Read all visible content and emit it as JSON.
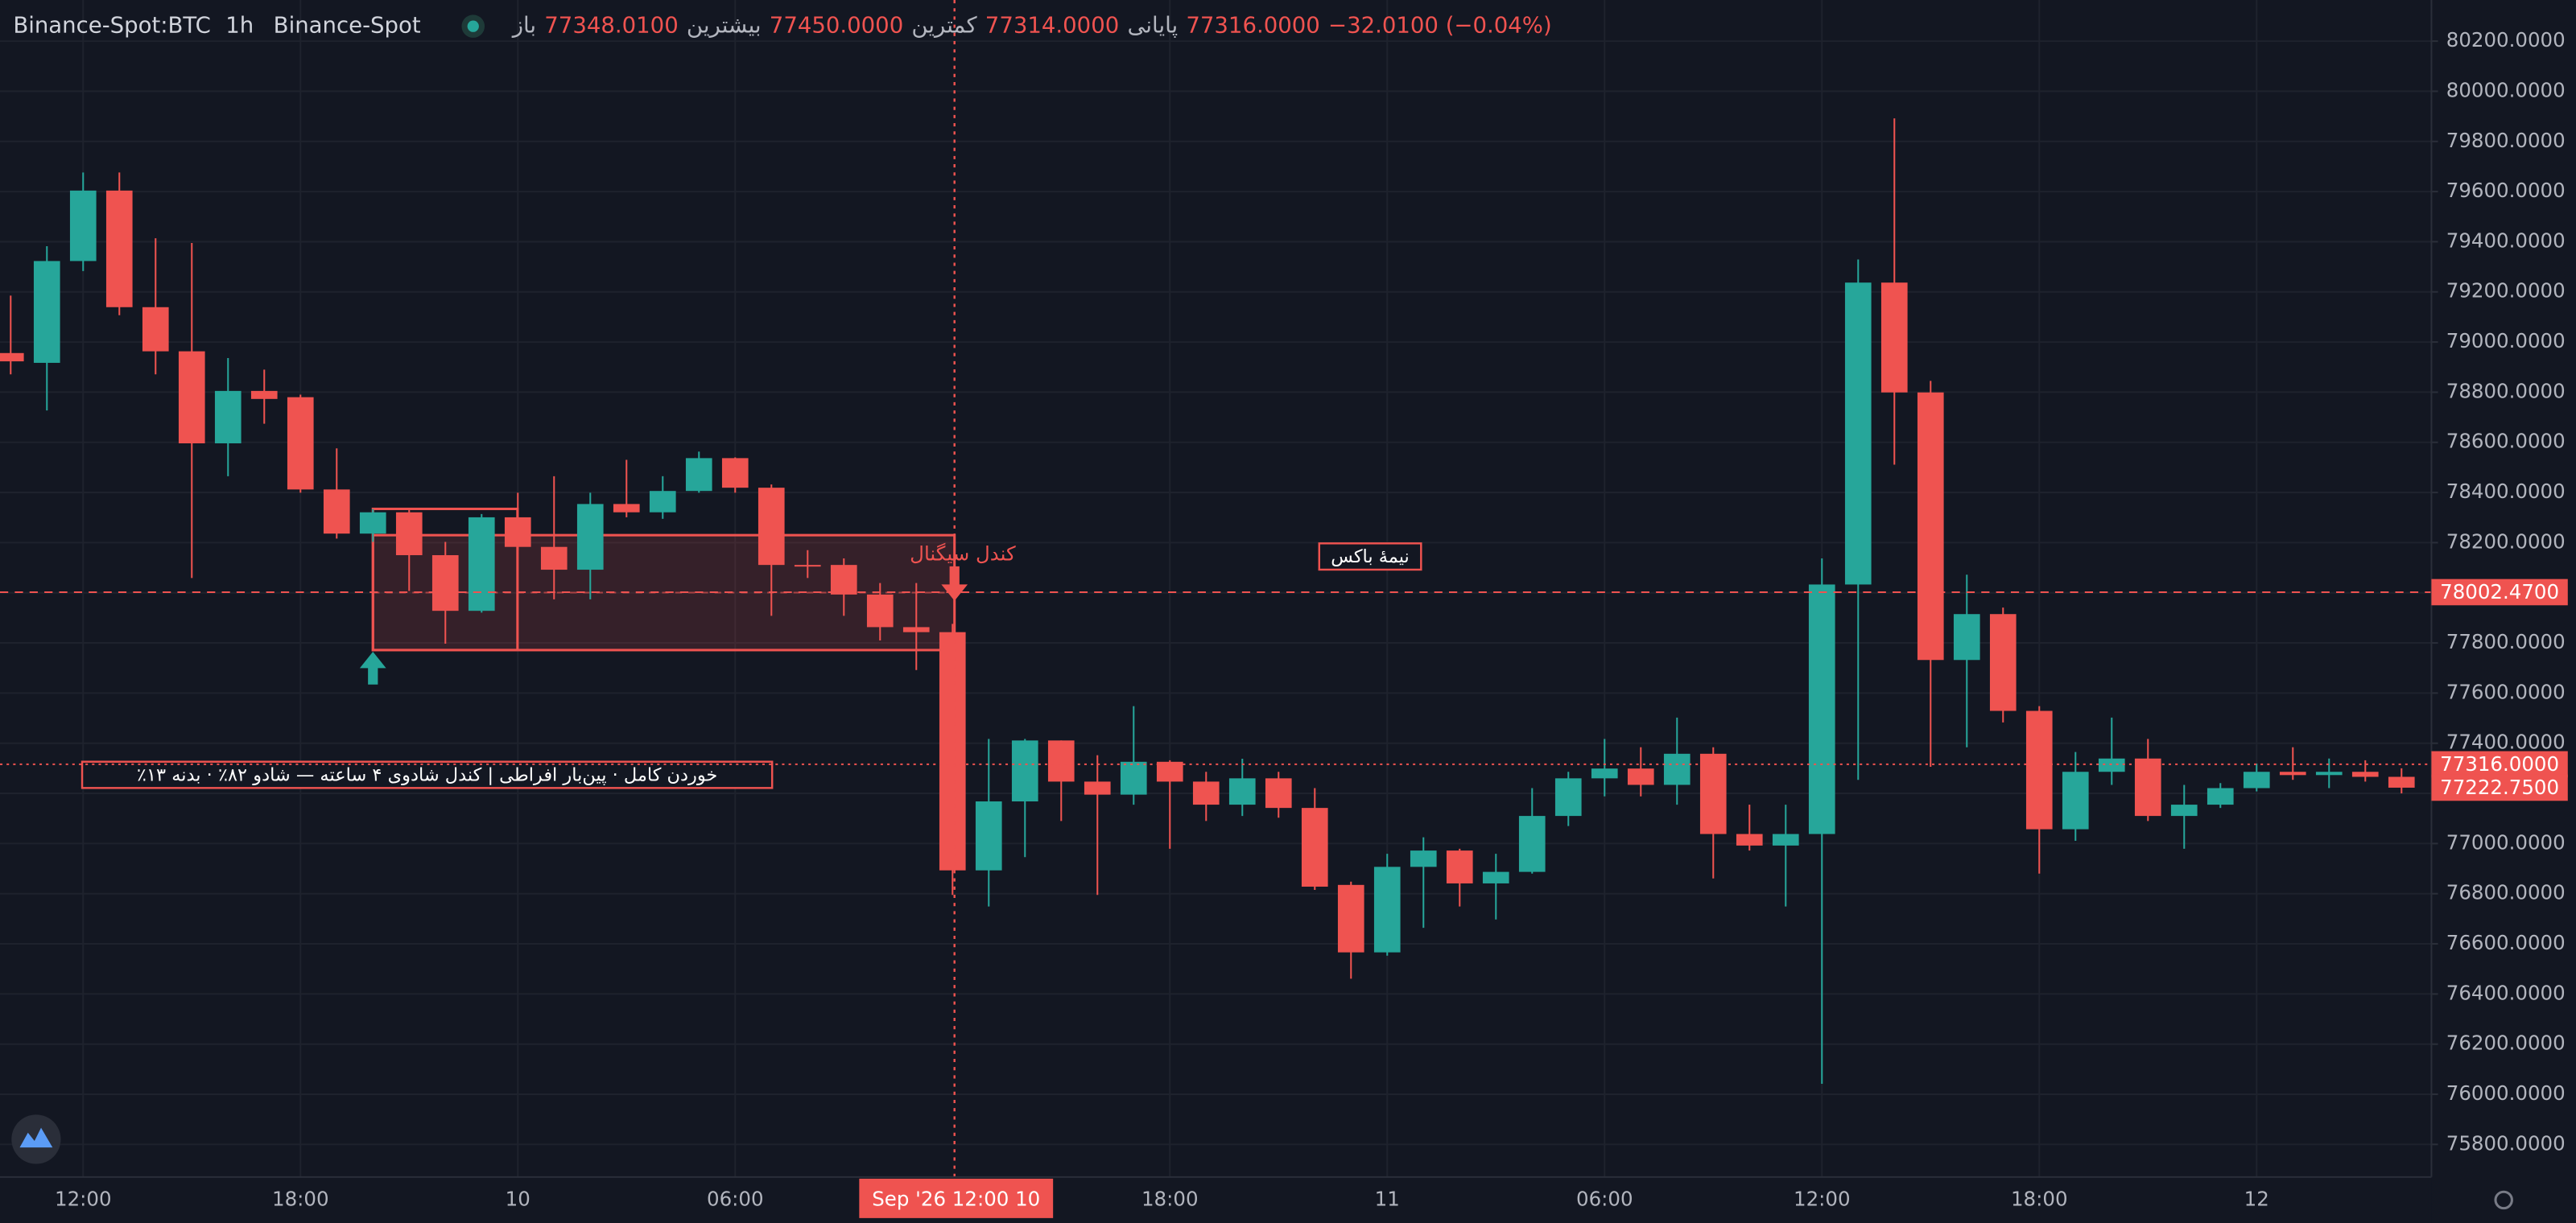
{
  "chart_data": {
    "type": "candlestick",
    "header": {
      "symbol": "Binance-Spot:BTC",
      "interval": "1h",
      "exchange": "Binance-Spot",
      "ohlc": [
        {
          "label": "باز",
          "value": "77348.0100"
        },
        {
          "label": "بیشترین",
          "value": "77450.0000"
        },
        {
          "label": "کمترین",
          "value": "77314.0000"
        },
        {
          "label": "پایانی",
          "value": "77316.0000"
        }
      ],
      "change": "−32.0100 (−0.04%)"
    },
    "categories": [
      null,
      null,
      "12:00",
      null,
      null,
      null,
      null,
      null,
      "18:00",
      null,
      null,
      null,
      null,
      null,
      "10",
      null,
      null,
      null,
      null,
      null,
      "06:00",
      null,
      null,
      null,
      null,
      null,
      null,
      null,
      null,
      null,
      null,
      null,
      "18:00",
      null,
      null,
      null,
      null,
      null,
      "11",
      null,
      null,
      null,
      null,
      null,
      "06:00",
      null,
      null,
      null,
      null,
      null,
      "12:00",
      null,
      null,
      null,
      null,
      null,
      "18:00",
      null,
      null,
      null,
      null,
      null,
      "12",
      null,
      null,
      null,
      null
    ],
    "open": [
      78956,
      78917,
      79323,
      79604,
      79139,
      78963,
      78596,
      78805,
      78780,
      78412,
      78236,
      78321,
      78150,
      77928,
      78301,
      78183,
      78092,
      78354,
      78321,
      78406,
      78537,
      78419,
      78111,
      78111,
      77993,
      77863,
      77843,
      76893,
      77168,
      77411,
      77247,
      77195,
      77326,
      77247,
      77155,
      77260,
      77142,
      76835,
      76566,
      76907,
      76972,
      76841,
      76887,
      77110,
      77260,
      77299,
      77234,
      77358,
      77038,
      76992,
      77038,
      78033,
      79237,
      78799,
      77732,
      77915,
      77529,
      77057,
      77286,
      77339,
      77110,
      77155,
      77221,
      77286,
      77273,
      77286,
      77266
    ],
    "high": [
      79185,
      79382,
      79676,
      79676,
      79414,
      79395,
      78936,
      78890,
      78790,
      78576,
      78334,
      78334,
      78203,
      78314,
      78399,
      78465,
      78399,
      78530,
      78465,
      78563,
      78540,
      78432,
      78170,
      78137,
      78039,
      78039,
      77876,
      77417,
      77417,
      77411,
      77352,
      77548,
      77332,
      77286,
      77338,
      77286,
      77221,
      76848,
      76959,
      77025,
      76979,
      76959,
      77221,
      77286,
      77417,
      77384,
      77502,
      77384,
      77155,
      77155,
      78137,
      79329,
      79892,
      78845,
      78072,
      77941,
      77548,
      77365,
      77502,
      77417,
      77234,
      77241,
      77319,
      77384,
      77339,
      77332,
      77300
    ],
    "low": [
      78871,
      78727,
      79283,
      79107,
      78871,
      78059,
      78465,
      78674,
      78399,
      78216,
      78203,
      78007,
      77797,
      77921,
      78170,
      77974,
      77974,
      78301,
      78295,
      78399,
      78399,
      77908,
      78059,
      77908,
      77810,
      77692,
      76795,
      76749,
      76946,
      77090,
      76795,
      77155,
      76979,
      77090,
      77110,
      77103,
      76815,
      76461,
      76553,
      76664,
      76749,
      76697,
      76880,
      77070,
      77188,
      77188,
      77155,
      76861,
      76972,
      76749,
      76042,
      77254,
      78511,
      77306,
      77384,
      77483,
      76880,
      77011,
      77234,
      77090,
      76979,
      77142,
      77208,
      77254,
      77221,
      77247,
      77200
    ],
    "close": [
      78923,
      79323,
      79604,
      79139,
      78963,
      78596,
      78805,
      78773,
      78412,
      78236,
      78321,
      78150,
      77928,
      78301,
      78183,
      78092,
      78354,
      78321,
      78406,
      78537,
      78419,
      78111,
      78105,
      77993,
      77863,
      77843,
      76893,
      77168,
      77411,
      77247,
      77195,
      77326,
      77247,
      77155,
      77260,
      77142,
      76828,
      76566,
      76907,
      76972,
      76841,
      76887,
      77110,
      77260,
      77299,
      77234,
      77358,
      77038,
      76992,
      77038,
      78033,
      79237,
      78799,
      77732,
      77915,
      77529,
      77057,
      77286,
      77339,
      77110,
      77155,
      77221,
      77286,
      77273,
      77286,
      77266,
      77222.75
    ],
    "up_color": "#26a69a",
    "down_color": "#ef5350",
    "ylim": [
      75670,
      80364
    ],
    "yticks": [
      {
        "value": 75800,
        "label": "75800.0000"
      },
      {
        "value": 76000,
        "label": "76000.0000"
      },
      {
        "value": 76200,
        "label": "76200.0000"
      },
      {
        "value": 76400,
        "label": "76400.0000"
      },
      {
        "value": 76600,
        "label": "76600.0000"
      },
      {
        "value": 76800,
        "label": "76800.0000"
      },
      {
        "value": 77000,
        "label": "77000.0000"
      },
      {
        "value": 77200,
        "label": "77200.0000"
      },
      {
        "value": 77400,
        "label": "77400.0000"
      },
      {
        "value": 77600,
        "label": "77600.0000"
      },
      {
        "value": 77800,
        "label": "77800.0000"
      },
      {
        "value": 78000,
        "label": "78000.0000"
      },
      {
        "value": 78200,
        "label": "78200.0000"
      },
      {
        "value": 78400,
        "label": "78400.0000"
      },
      {
        "value": 78600,
        "label": "78600.0000"
      },
      {
        "value": 78800,
        "label": "78800.0000"
      },
      {
        "value": 79000,
        "label": "79000.0000"
      },
      {
        "value": 79200,
        "label": "79200.0000"
      },
      {
        "value": 79400,
        "label": "79400.0000"
      },
      {
        "value": 79600,
        "label": "79600.0000"
      },
      {
        "value": 79800,
        "label": "79800.0000"
      },
      {
        "value": 80000,
        "label": "80000.0000"
      },
      {
        "value": 80200,
        "label": "80200.0000"
      }
    ],
    "grid": true,
    "price_lines": [
      {
        "value": 78002.47,
        "label": "78002.4700",
        "style": "dashed"
      },
      {
        "value": 77316,
        "label": "77316.0000",
        "style": "dotted"
      },
      {
        "value": 77222.75,
        "label": "77222.7500"
      }
    ],
    "crosshair_label": "Sep '26 12:00 10",
    "annotations": {
      "signal_candle": "کندل سیگنال",
      "half_box": "نیمهٔ باکس",
      "note": "خوردن کامل · پین‌بار افراطی | کندل شادوی ۴ ساعته — شادو ۸۲٪ · بدنه ۱۳٪"
    }
  }
}
